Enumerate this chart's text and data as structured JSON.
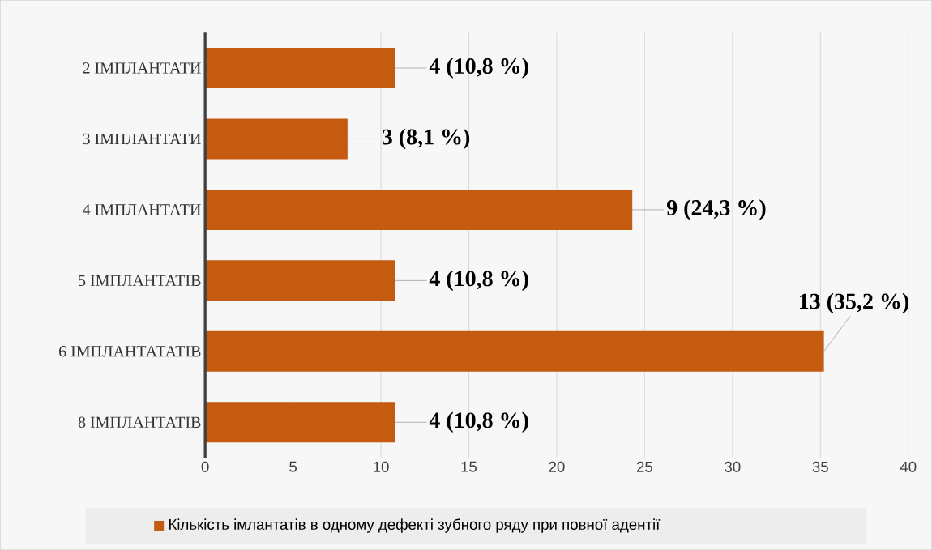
{
  "chart_data": {
    "type": "bar",
    "orientation": "horizontal",
    "categories": [
      "2 ІМПЛАНТАТИ",
      "3 ІМПЛАНТАТИ",
      "4 ІМПЛАНТАТИ",
      "5 ІМПЛАНТАТІВ",
      "6 ІМПЛАНТАТАТІВ",
      "8 ІМПЛАНТАТІВ"
    ],
    "series": [
      {
        "name": "Кількість імлантатів в одному дефекті зубного ряду при повної адентії",
        "color": "#c55a11",
        "values": [
          10.8,
          8.1,
          24.3,
          10.8,
          35.2,
          10.8
        ],
        "value_labels": [
          "4 (10,8 %)",
          "3 (8,1 %)",
          "9 (24,3 %)",
          "4 (10,8 %)",
          "13 (35,2 %)",
          "4 (10,8 %)"
        ]
      }
    ],
    "xlim": [
      0,
      40
    ],
    "xticks": [
      0,
      5,
      10,
      15,
      20,
      25,
      30,
      35,
      40
    ],
    "grid": "x",
    "legend": "bottom"
  }
}
